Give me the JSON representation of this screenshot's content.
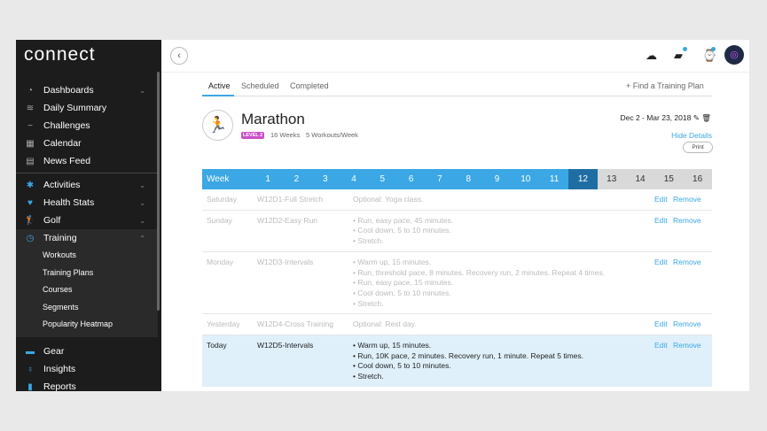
{
  "sidebar": {
    "logo": "connect",
    "items": [
      {
        "label": "Dashboards",
        "icon": "gauge-icon",
        "chevron": "down"
      },
      {
        "label": "Daily Summary",
        "icon": "layers-icon"
      },
      {
        "label": "Challenges",
        "icon": "wave-icon"
      },
      {
        "label": "Calendar",
        "icon": "calendar-icon"
      },
      {
        "label": "News Feed",
        "icon": "newspaper-icon"
      },
      {
        "label": "Activities",
        "icon": "person-icon",
        "chevron": "down"
      },
      {
        "label": "Health Stats",
        "icon": "heart-icon",
        "chevron": "down"
      },
      {
        "label": "Golf",
        "icon": "golfer-icon",
        "chevron": "down"
      },
      {
        "label": "Training",
        "icon": "stopwatch-icon",
        "chevron": "up"
      },
      {
        "label": "Gear",
        "icon": "shoe-icon"
      },
      {
        "label": "Insights",
        "icon": "lightbulb-icon"
      },
      {
        "label": "Reports",
        "icon": "bar-chart-icon"
      }
    ],
    "training_sub": [
      "Workouts",
      "Training Plans",
      "Courses",
      "Segments",
      "Popularity Heatmap"
    ]
  },
  "tabs": [
    "Active",
    "Scheduled",
    "Completed"
  ],
  "find_plan": "+ Find a Training Plan",
  "plan": {
    "title": "Marathon",
    "level": "LEVEL 2",
    "weeks": "16 Weeks",
    "per_week": "5 Workouts/Week",
    "dates": "Dec 2 - Mar 23, 2018",
    "hide_details": "Hide Details",
    "print": "Print"
  },
  "week_bar": {
    "label": "Week",
    "weeks": [
      "1",
      "2",
      "3",
      "4",
      "5",
      "6",
      "7",
      "8",
      "9",
      "10",
      "11",
      "12",
      "13",
      "14",
      "15",
      "16"
    ],
    "current": "12"
  },
  "colors": {
    "accent": "#3ba7e4",
    "current_week": "#1f6ea3",
    "badge": "#c94fc9",
    "today_row": "#dff0fa"
  },
  "rows": [
    {
      "day": "Saturday",
      "name": "W12D1-Full Stretch",
      "desc": [
        "Optional: Yoga class."
      ],
      "edit": "Edit",
      "remove": "Remove"
    },
    {
      "day": "Sunday",
      "name": "W12D2-Easy Run",
      "desc": [
        "• Run, easy pace, 45 minutes.",
        "• Cool down, 5 to 10 minutes.",
        "• Stretch."
      ],
      "edit": "Edit",
      "remove": "Remove"
    },
    {
      "day": "Monday",
      "name": "W12D3-Intervals",
      "desc": [
        "• Warm up, 15 minutes.",
        "• Run, threshold pace, 8 minutes. Recovery run, 2 minutes. Repeat 4 times.",
        "• Run, easy pace, 15 minutes.",
        "• Cool down, 5 to 10 minutes.",
        "• Stretch."
      ],
      "edit": "Edit",
      "remove": "Remove"
    },
    {
      "day": "Yesterday",
      "name": "W12D4-Cross Training",
      "desc": [
        "Optional: Rest day."
      ],
      "edit": "Edit",
      "remove": "Remove"
    },
    {
      "day": "Today",
      "name": "W12D5-Intervals",
      "desc": [
        "• Warm up, 15 minutes.",
        "• Run, 10K pace, 2 minutes. Recovery run, 1 minute. Repeat 5 times.",
        "• Cool down, 5 to 10 minutes.",
        "• Stretch."
      ],
      "edit": "Edit",
      "remove": "Remove"
    }
  ]
}
